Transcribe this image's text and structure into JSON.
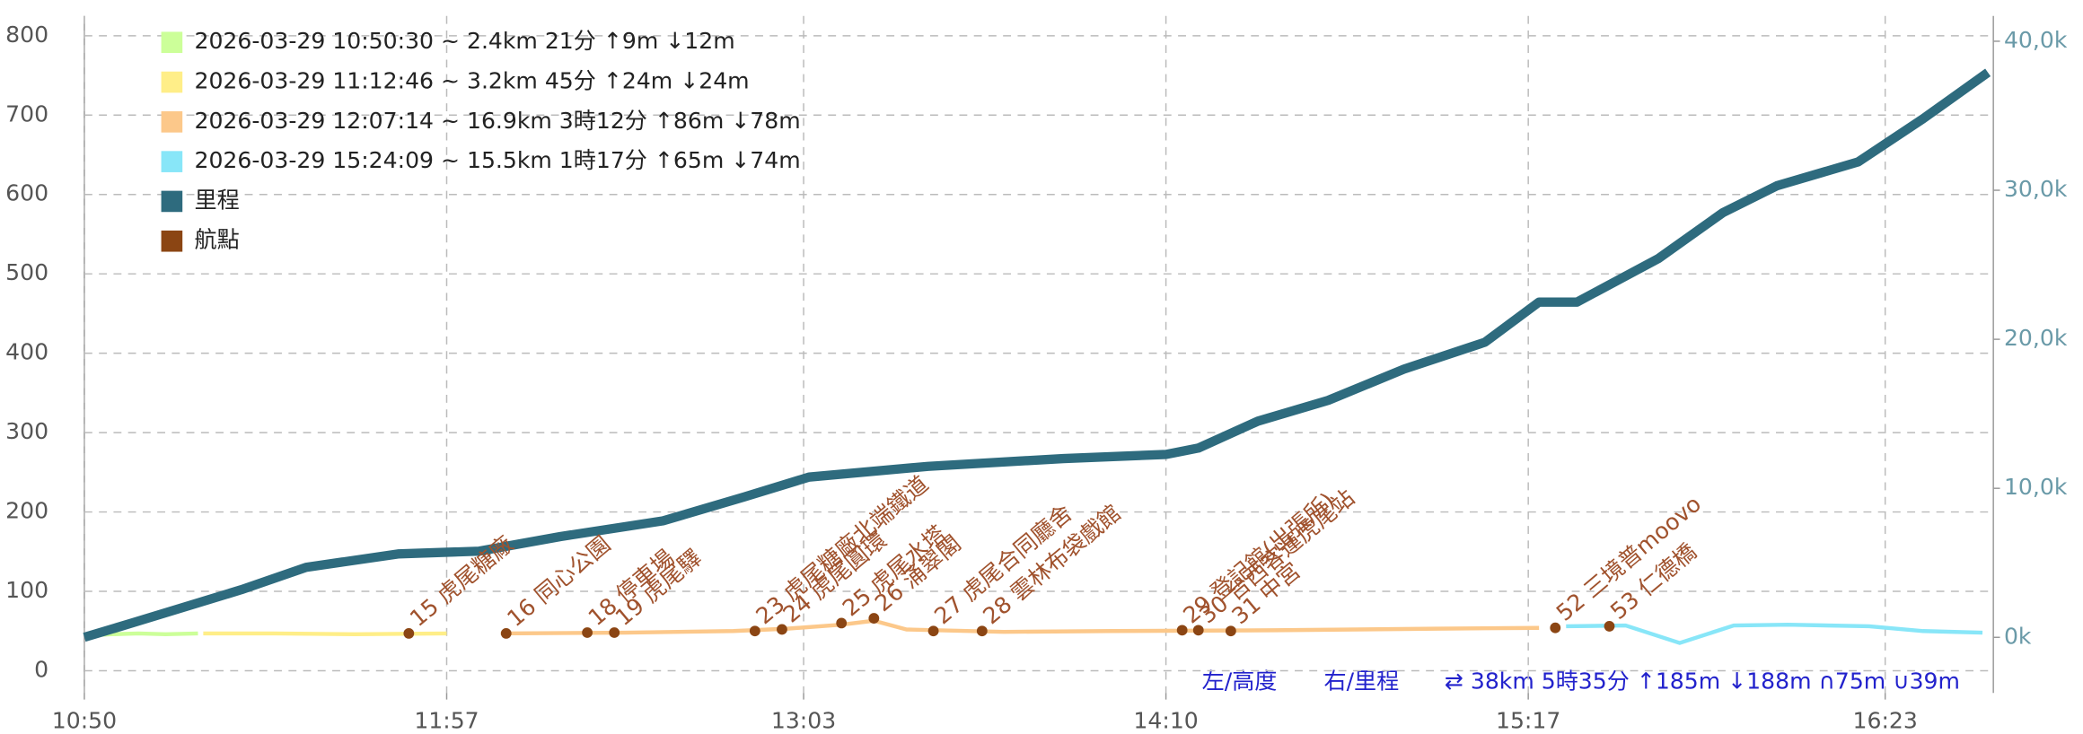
{
  "chart_data": {
    "type": "line",
    "xlim": [
      "10:50",
      "16:43"
    ],
    "xticks": [
      "10:50",
      "11:57",
      "13:03",
      "14:10",
      "15:17",
      "16:23"
    ],
    "ylim": [
      -28,
      825
    ],
    "yticks": [
      0,
      100,
      200,
      300,
      400,
      500,
      600,
      700,
      800
    ],
    "y2lim": [
      -3730,
      41700
    ],
    "y2ticks": [
      {
        "value": 0,
        "label": "0k"
      },
      {
        "value": 10000,
        "label": "10,0k"
      },
      {
        "value": 20000,
        "label": "20,0k"
      },
      {
        "value": 30000,
        "label": "30,0k"
      },
      {
        "value": 40000,
        "label": "40,0k"
      }
    ],
    "grid": true,
    "series": [
      {
        "name": "2026-03-29 10:50:30 ~ 2.4km 21分 ↑9m ↓12m",
        "color": "#ccff99",
        "x": [
          "10:50",
          "10:55",
          "11:00",
          "11:05",
          "11:11"
        ],
        "values": [
          44,
          46,
          47,
          46,
          47
        ]
      },
      {
        "name": "2026-03-29 11:12:46 ~ 3.2km 45分 ↑24m ↓24m",
        "color": "#ffee88",
        "x": [
          "11:12",
          "11:25",
          "11:40",
          "11:57"
        ],
        "values": [
          47,
          47,
          46,
          47
        ]
      },
      {
        "name": "2026-03-29 12:07:14 ~ 16.9km 3時12分 ↑86m ↓78m",
        "color": "#fcc88a",
        "x": [
          "12:07",
          "12:30",
          "12:50",
          "13:00",
          "13:10",
          "13:16",
          "13:22",
          "13:40",
          "14:00",
          "14:30",
          "15:00",
          "15:19"
        ],
        "values": [
          47,
          48,
          50,
          53,
          58,
          63,
          52,
          49,
          50,
          51,
          53,
          54
        ]
      },
      {
        "name": "2026-03-29 15:24:09 ~ 15.5km 1時17分 ↑65m ↓74m",
        "color": "#88e6f8",
        "x": [
          "15:24",
          "15:35",
          "15:45",
          "15:55",
          "16:05",
          "16:20",
          "16:30",
          "16:41"
        ],
        "values": [
          56,
          57,
          35,
          57,
          58,
          56,
          50,
          48
        ]
      },
      {
        "name": "里程",
        "color": "#2e6b7e",
        "axis": "y2",
        "x": [
          "10:50",
          "10:59",
          "11:19",
          "11:31",
          "11:48",
          "12:03",
          "12:18",
          "12:37",
          "12:52",
          "13:04",
          "13:26",
          "13:51",
          "14:10",
          "14:16",
          "14:27",
          "14:40",
          "14:54",
          "15:09",
          "15:19",
          "15:26",
          "15:41",
          "15:53",
          "16:03",
          "16:18",
          "16:30",
          "16:42"
        ],
        "values": [
          0,
          980,
          3200,
          4700,
          5600,
          5780,
          6760,
          7820,
          9420,
          10750,
          11470,
          12000,
          12270,
          12700,
          14500,
          15900,
          18000,
          19800,
          22500,
          22500,
          25400,
          28500,
          30300,
          31900,
          34800,
          37900
        ]
      },
      {
        "name": "航點",
        "color": "#8b4513",
        "kind": "waypoints",
        "x": [
          "11:50",
          "12:08",
          "12:23",
          "12:28",
          "12:54",
          "12:59",
          "13:10",
          "13:16",
          "13:27",
          "13:36",
          "14:13",
          "14:16",
          "14:22",
          "15:22",
          "15:32"
        ],
        "values": [
          47,
          47,
          48,
          48,
          50,
          52,
          60,
          66,
          50,
          50,
          51,
          51,
          50,
          54,
          56
        ],
        "labels": [
          "15 虎尾糖廠",
          "16 同心公園",
          "18 停車場",
          "19 虎尾驛",
          "23 虎尾糖廠北端鐵道",
          "24 虎尾圓環",
          "25 虎尾水塔",
          "26 涌翠閣",
          "27 虎尾合同廳舍",
          "28 雲林布袋戲館",
          "29 登記館(出張所)",
          "30 台西客運虎尾站",
          "31 中宮",
          "52 三境普moovo",
          "53 仁德橋"
        ]
      }
    ],
    "annotations": [
      "左/高度",
      "右/里程",
      "⇄ 38km 5時35分 ↑185m ↓188m ∩75m ∪39m"
    ]
  }
}
